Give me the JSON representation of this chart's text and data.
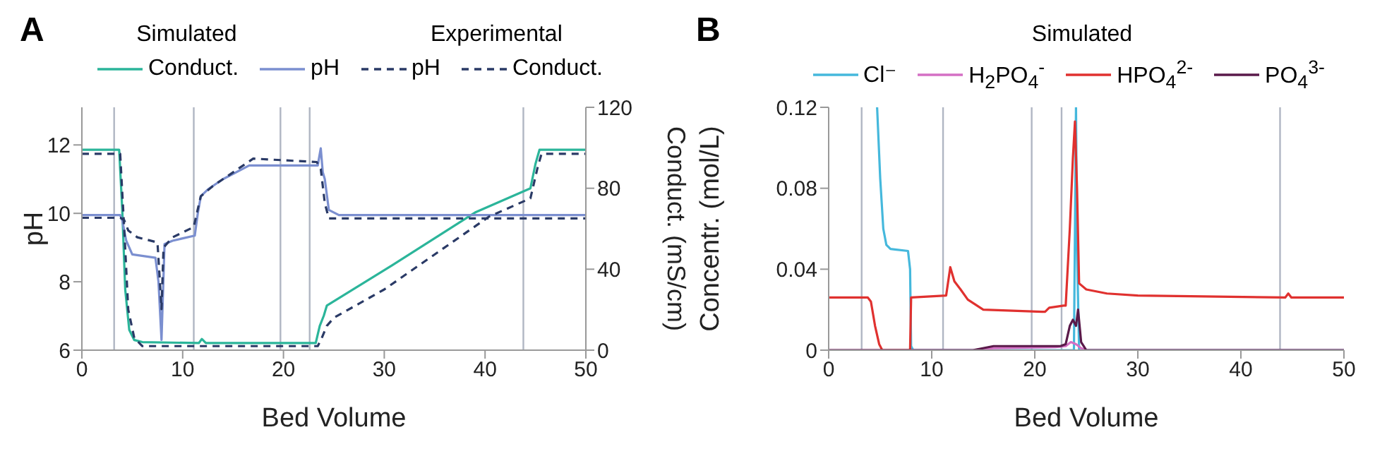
{
  "chart_data": [
    {
      "type": "line",
      "title": "A",
      "xlabel": "Bed Volume",
      "ylabel": "pH",
      "y2label": "Conduct. (mS/cm)",
      "annotations": [
        "Simulated",
        "Experimental"
      ],
      "legend": "top",
      "xlim": [
        0,
        50
      ],
      "xticks": [
        0,
        10,
        20,
        30,
        40,
        50
      ],
      "ylim": [
        6,
        13.1
      ],
      "yticks": [
        6,
        8,
        10,
        12
      ],
      "y2lim": [
        0,
        120
      ],
      "y2ticks": [
        0,
        40,
        80,
        120
      ],
      "ref_lines": [
        {
          "axis": "x",
          "value": 3.2,
          "color": "#b0b6c3"
        },
        {
          "axis": "x",
          "value": 11.1,
          "color": "#b0b6c3"
        },
        {
          "axis": "x",
          "value": 19.7,
          "color": "#b0b6c3"
        },
        {
          "axis": "x",
          "value": 22.6,
          "color": "#b0b6c3"
        },
        {
          "axis": "x",
          "value": 43.8,
          "color": "#b0b6c3"
        }
      ],
      "series": [
        {
          "name": "Conduct.",
          "color": "#2bb59a",
          "axis": "y2",
          "line_style": "solid",
          "x": [
            0,
            3.7,
            4.0,
            4.3,
            4.7,
            5.2,
            6,
            11.6,
            11.9,
            12.3,
            23.2,
            23.6,
            24.0,
            24.3,
            30.8,
            39,
            44.5,
            45.0,
            45.4,
            50
          ],
          "values": [
            99,
            99,
            70,
            30,
            10,
            5,
            4,
            3.5,
            5.5,
            3.5,
            3.5,
            12,
            17,
            22,
            42,
            68,
            80,
            92,
            99,
            99
          ]
        },
        {
          "name": "pH",
          "color": "#7b8fd0",
          "line_style": "solid",
          "x": [
            0,
            3.8,
            4.0,
            4.4,
            5.0,
            7.3,
            7.6,
            7.9,
            8.2,
            9,
            11.2,
            11.5,
            11.8,
            12.5,
            14,
            16.6,
            23.4,
            23.7,
            23.9,
            24.1,
            24.5,
            25.5,
            50
          ],
          "values": [
            9.95,
            9.95,
            9.8,
            9.2,
            8.8,
            8.7,
            8.0,
            6.3,
            9.1,
            9.2,
            9.35,
            10.0,
            10.5,
            10.7,
            11.0,
            11.4,
            11.4,
            11.9,
            11.2,
            11.0,
            10.1,
            9.95,
            9.95
          ]
        },
        {
          "name": "pH",
          "color": "#2a3a66",
          "line_style": "dashed",
          "x": [
            0,
            3.8,
            4.2,
            4.6,
            5.5,
            7.5,
            7.7,
            7.9,
            8.1,
            9,
            11.1,
            11.4,
            11.8,
            13,
            15,
            17,
            23.3,
            23.7,
            24.1,
            24.5,
            50
          ],
          "values": [
            9.87,
            9.87,
            9.8,
            9.5,
            9.3,
            9.15,
            8.2,
            7.2,
            9.0,
            9.3,
            9.6,
            10.0,
            10.5,
            10.8,
            11.2,
            11.6,
            11.5,
            11.3,
            10.3,
            9.85,
            9.85
          ]
        },
        {
          "name": "Conduct.",
          "color": "#2a3a66",
          "axis": "y2",
          "line_style": "dashed",
          "x": [
            0,
            3.8,
            4.2,
            4.6,
            5.2,
            6,
            23.4,
            23.8,
            24.3,
            25,
            30,
            40.4,
            44.5,
            45.2,
            45.6,
            50
          ],
          "values": [
            97,
            97,
            60,
            20,
            6,
            2,
            2,
            6,
            12,
            16,
            30,
            66,
            75,
            90,
            97,
            97
          ]
        }
      ]
    },
    {
      "type": "line",
      "title": "B",
      "xlabel": "Bed Volume",
      "ylabel": "Concentr. (mol/L)",
      "legend_title": "Simulated",
      "legend": "top",
      "xlim": [
        0,
        50
      ],
      "xticks": [
        0,
        10,
        20,
        30,
        40,
        50
      ],
      "ylim": [
        0,
        0.12
      ],
      "yticks": [
        0,
        0.04,
        0.08,
        0.12
      ],
      "ref_lines": [
        {
          "axis": "x",
          "value": 3.2,
          "color": "#b0b6c3"
        },
        {
          "axis": "x",
          "value": 11.1,
          "color": "#b0b6c3"
        },
        {
          "axis": "x",
          "value": 19.7,
          "color": "#b0b6c3"
        },
        {
          "axis": "x",
          "value": 22.6,
          "color": "#b0b6c3"
        },
        {
          "axis": "x",
          "value": 43.8,
          "color": "#b0b6c3"
        }
      ],
      "series": [
        {
          "name": "Cl⁻",
          "color": "#45b8dc",
          "x": [
            4.7,
            5.0,
            5.3,
            5.6,
            6,
            7.7,
            7.9,
            8.0,
            8.2,
            23.8,
            23.9,
            24.0,
            24.1,
            24.3,
            50
          ],
          "values": [
            0.12,
            0.085,
            0.06,
            0.052,
            0.05,
            0.049,
            0.04,
            0.002,
            0,
            0,
            0.06,
            0.12,
            0.05,
            0,
            0
          ]
        },
        {
          "name": "H$_{2}$PO$_{4}$$^{-}$",
          "color": "#d46fc4",
          "x": [
            0,
            14,
            16,
            22,
            23,
            23.5,
            24,
            24.5,
            25,
            50
          ],
          "values": [
            0,
            0,
            0.001,
            0.0015,
            0.002,
            0.004,
            0.003,
            0.001,
            0,
            0
          ]
        },
        {
          "name": "HPO$_{4}$$^{2-}$",
          "color": "#e0312f",
          "x": [
            0,
            3.8,
            4.1,
            4.5,
            4.9,
            5.2,
            7.9,
            8.0,
            11.4,
            11.8,
            12.2,
            12.8,
            13.5,
            15,
            20.7,
            21.0,
            21.4,
            22.8,
            23.0,
            23.4,
            23.7,
            23.9,
            24.1,
            24.3,
            25,
            27,
            30,
            44.3,
            44.6,
            44.9,
            50
          ],
          "values": [
            0.026,
            0.026,
            0.024,
            0.012,
            0.003,
            0,
            0,
            0.026,
            0.027,
            0.041,
            0.034,
            0.03,
            0.025,
            0.02,
            0.019,
            0.019,
            0.021,
            0.022,
            0.022,
            0.06,
            0.095,
            0.113,
            0.08,
            0.033,
            0.03,
            0.028,
            0.027,
            0.026,
            0.028,
            0.026,
            0.026
          ]
        },
        {
          "name": "PO$_{4}$$^{3-}$",
          "color": "#5a1a4a",
          "x": [
            0,
            14,
            16,
            22.5,
            23,
            23.4,
            23.7,
            24,
            24.2,
            24.5,
            25,
            50
          ],
          "values": [
            0,
            0,
            0.002,
            0.002,
            0.003,
            0.012,
            0.015,
            0.012,
            0.02,
            0.004,
            0,
            0
          ]
        }
      ]
    }
  ]
}
